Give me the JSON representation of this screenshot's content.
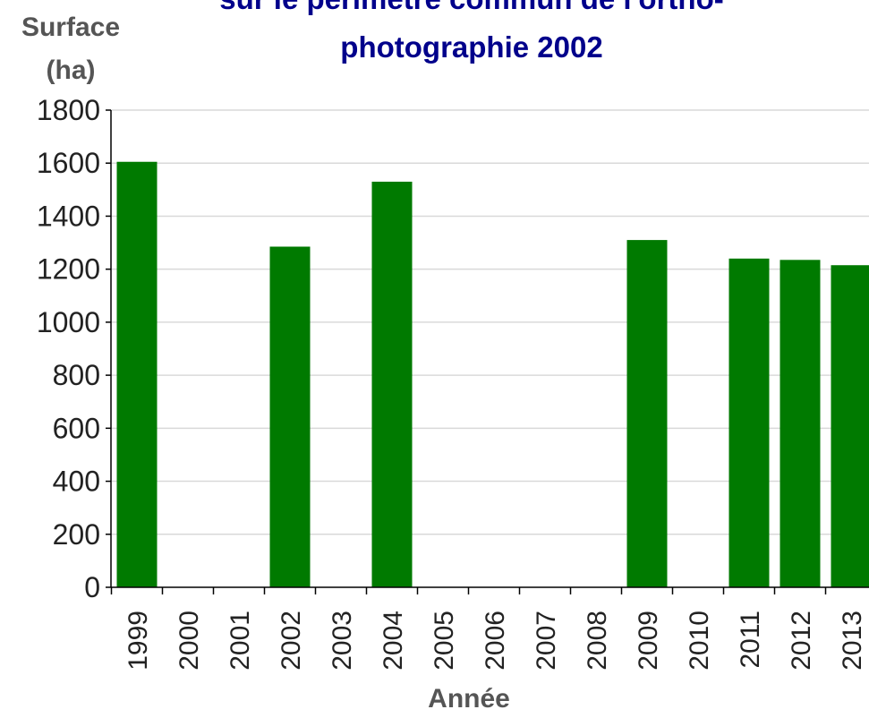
{
  "chart_data": {
    "type": "bar",
    "title_lines": [
      "sur le périmètre commun de l'ortho-",
      "photographie 2002"
    ],
    "ylabel_lines": [
      "Surface",
      "(ha)"
    ],
    "xlabel": "Année",
    "categories": [
      "1999",
      "2000",
      "2001",
      "2002",
      "2003",
      "2004",
      "2005",
      "2006",
      "2007",
      "2008",
      "2009",
      "2010",
      "2011",
      "2012",
      "2013"
    ],
    "values": [
      1605,
      null,
      null,
      1285,
      null,
      1530,
      null,
      null,
      null,
      null,
      1310,
      null,
      1240,
      1235,
      1215
    ],
    "yticks": [
      0,
      200,
      400,
      600,
      800,
      1000,
      1200,
      1400,
      1600,
      1800
    ],
    "ylim": [
      0,
      1800
    ],
    "grid": true,
    "bar_color": "#007a00",
    "title_color": "#00008b"
  }
}
